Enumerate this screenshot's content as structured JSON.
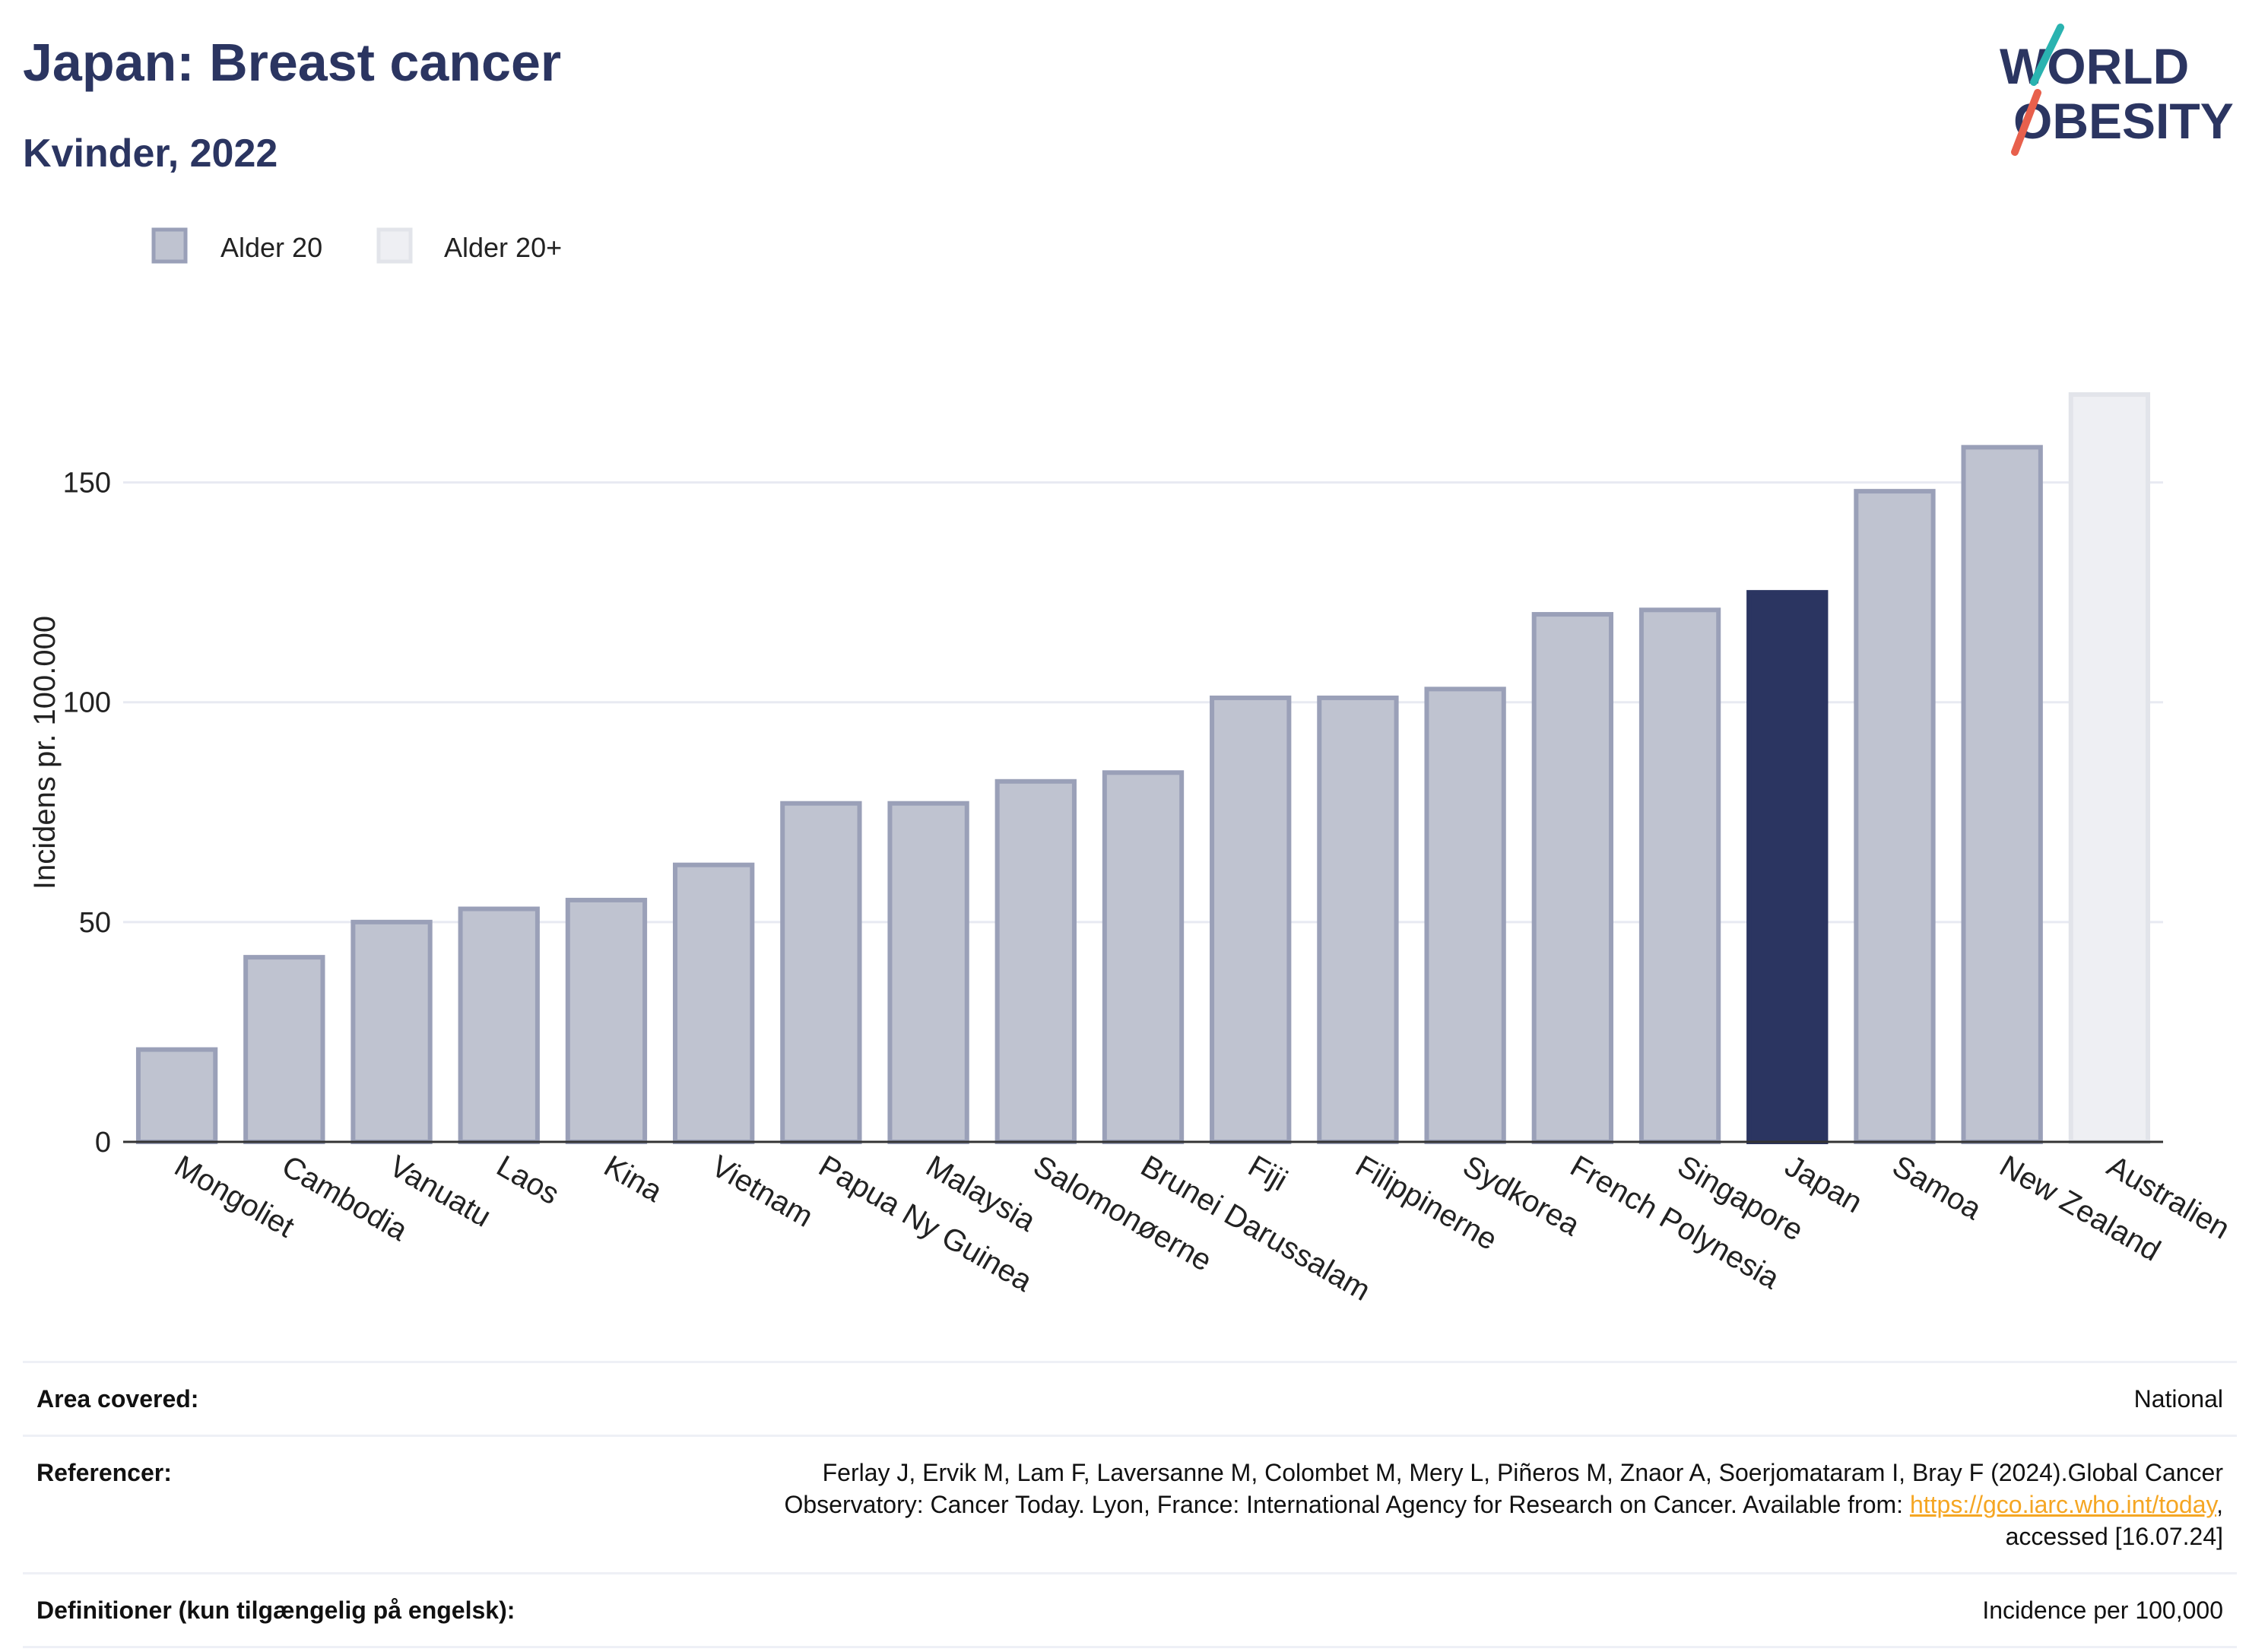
{
  "header": {
    "title": "Japan: Breast cancer",
    "subtitle": "Kvinder, 2022"
  },
  "logo": {
    "line1": "WORLD",
    "line2": "OBESITY"
  },
  "colors": {
    "title": "#2b3561",
    "bar_default": "#bfc3d0",
    "bar_default_stroke": "#9aa0b8",
    "bar_highlight": "#2b3561",
    "bar_age20plus": "#eeeff3",
    "bar_age20plus_stroke": "#e2e4ea",
    "gridline": "#e8eaf2",
    "link": "#f5a623"
  },
  "chart_data": {
    "type": "bar",
    "ylabel": "Incidens pr. 100.000",
    "ylim": [
      0,
      175
    ],
    "yticks": [
      0,
      50,
      100,
      150
    ],
    "grid": true,
    "legend": [
      {
        "name": "Alder 20",
        "swatch": "default"
      },
      {
        "name": "Alder 20+",
        "swatch": "age20plus"
      }
    ],
    "legend_position": "top-left",
    "categories": [
      "Mongoliet",
      "Cambodia",
      "Vanuatu",
      "Laos",
      "Kina",
      "Vietnam",
      "Papua Ny Guinea",
      "Malaysia",
      "Salomonøerne",
      "Brunei Darussalam",
      "Fiji",
      "Filippinerne",
      "Sydkorea",
      "French Polynesia",
      "Singapore",
      "Japan",
      "Samoa",
      "New Zealand",
      "Australien"
    ],
    "values": [
      21,
      42,
      50,
      53,
      55,
      63,
      77,
      77,
      82,
      84,
      101,
      101,
      103,
      120,
      121,
      125,
      148,
      158,
      170
    ],
    "styles": [
      "default",
      "default",
      "default",
      "default",
      "default",
      "default",
      "default",
      "default",
      "default",
      "default",
      "default",
      "default",
      "default",
      "default",
      "default",
      "highlight",
      "default",
      "default",
      "age20plus"
    ]
  },
  "info": {
    "area_label": "Area covered:",
    "area_value": "National",
    "ref_label": "Referencer:",
    "ref_line1": "Ferlay J, Ervik M, Lam F, Laversanne M, Colombet M, Mery L, Piñeros M, Znaor A, Soerjomataram I, Bray F (2024).Global Cancer",
    "ref_line2_pre": "Observatory: Cancer Today. Lyon, France: International Agency for Research on Cancer. Available from: ",
    "ref_link": "https://gco.iarc.who.int/today",
    "ref_line2_post": ",",
    "ref_line3": "accessed [16.07.24]",
    "def_label": "Definitioner (kun tilgængelig på engelsk):",
    "def_value": "Incidence per 100,000"
  }
}
